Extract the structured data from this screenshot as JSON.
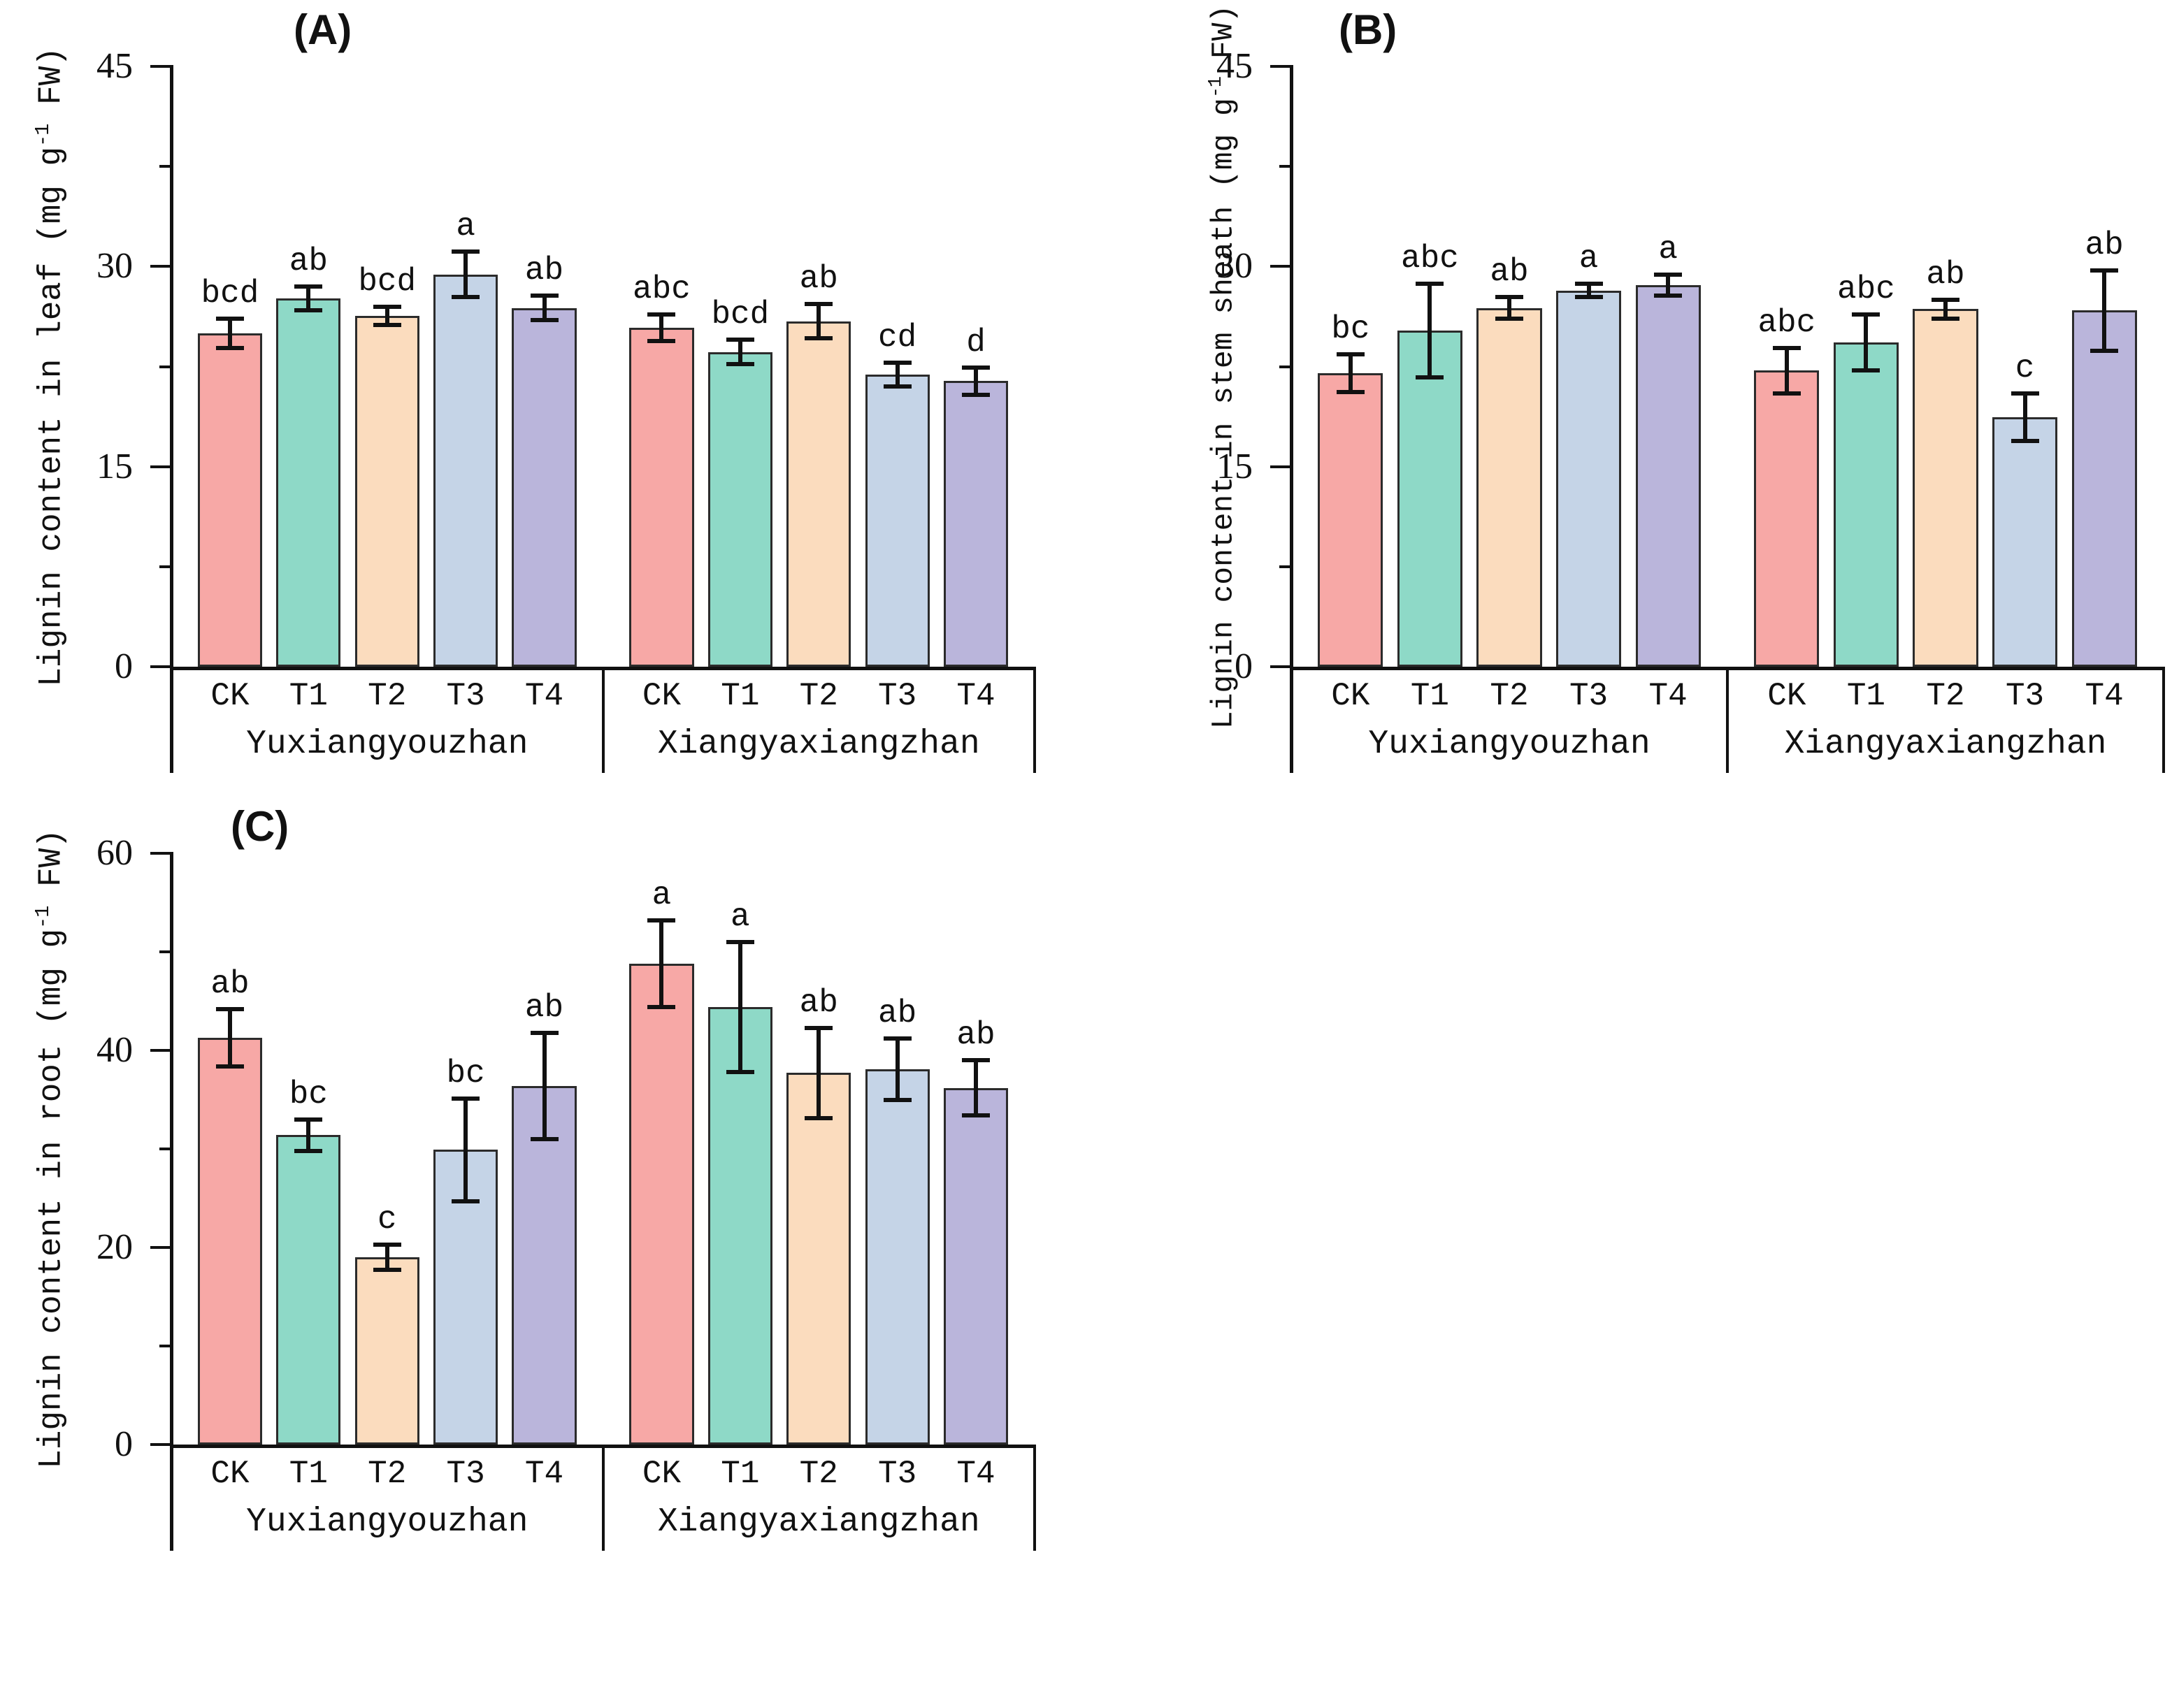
{
  "style": {
    "bar_colors": [
      "#F7A8A6",
      "#8ED9C7",
      "#FBDCBE",
      "#C5D4E7",
      "#BAB5DB"
    ],
    "bar_border_color": "#2b2b2b",
    "axis_color": "#111111",
    "background_color": "#ffffff"
  },
  "chart_data": [
    {
      "type": "bar",
      "panel_label": "(A)",
      "ylabel": {
        "pre": "Lignin content in leaf (mg g",
        "sup": "-1",
        "post": " FW)"
      },
      "ylim": [
        0,
        45
      ],
      "yticks": [
        {
          "value": 0,
          "label": "0"
        },
        {
          "value": 15,
          "label": "15"
        },
        {
          "value": 30,
          "label": "30"
        },
        {
          "value": 45,
          "label": "45"
        }
      ],
      "minor_ticks": [
        7.5,
        22.5,
        37.5
      ],
      "treatments": [
        "CK",
        "T1",
        "T2",
        "T3",
        "T4"
      ],
      "grid": false,
      "legend": "none",
      "groups": [
        {
          "label": "Yuxiangyouzhan",
          "values": [
            25.0,
            27.6,
            26.3,
            29.4,
            26.9
          ],
          "errors": [
            1.1,
            0.9,
            0.7,
            1.7,
            0.9
          ],
          "letters": [
            "bcd",
            "ab",
            "bcd",
            "a",
            "ab"
          ]
        },
        {
          "label": "Xiangyaxiangzhan",
          "values": [
            25.4,
            23.6,
            25.9,
            21.9,
            21.4
          ],
          "errors": [
            1.0,
            0.9,
            1.3,
            0.9,
            1.0
          ],
          "letters": [
            "abc",
            "bcd",
            "ab",
            "cd",
            "d"
          ]
        }
      ]
    },
    {
      "type": "bar",
      "panel_label": "(B)",
      "ylabel": {
        "pre": "Lignin content in stem sheath (mg g",
        "sup": "-1",
        "post": " FW)"
      },
      "ylim": [
        0,
        45
      ],
      "yticks": [
        {
          "value": 0,
          "label": "0"
        },
        {
          "value": 15,
          "label": "15"
        },
        {
          "value": 30,
          "label": "30"
        },
        {
          "value": 45,
          "label": "45"
        }
      ],
      "minor_ticks": [
        7.5,
        22.5,
        37.5
      ],
      "treatments": [
        "CK",
        "T1",
        "T2",
        "T3",
        "T4"
      ],
      "grid": false,
      "legend": "none",
      "groups": [
        {
          "label": "Yuxiangyouzhan",
          "values": [
            22.0,
            25.2,
            26.9,
            28.2,
            28.6
          ],
          "errors": [
            1.4,
            3.5,
            0.8,
            0.5,
            0.8
          ],
          "letters": [
            "bc",
            "abc",
            "ab",
            "a",
            "a"
          ]
        },
        {
          "label": "Xiangyaxiangzhan",
          "values": [
            22.2,
            24.3,
            26.8,
            18.7,
            26.7
          ],
          "errors": [
            1.7,
            2.1,
            0.7,
            1.8,
            3.0
          ],
          "letters": [
            "abc",
            "abc",
            "ab",
            "c",
            "ab"
          ]
        }
      ]
    },
    {
      "type": "bar",
      "panel_label": "(C)",
      "ylabel": {
        "pre": "Lignin content in root (mg g",
        "sup": "-1",
        "post": " FW)"
      },
      "ylim": [
        0,
        60
      ],
      "yticks": [
        {
          "value": 0,
          "label": "0"
        },
        {
          "value": 20,
          "label": "20"
        },
        {
          "value": 40,
          "label": "40"
        },
        {
          "value": 60,
          "label": "60"
        }
      ],
      "minor_ticks": [
        10,
        30,
        50
      ],
      "treatments": [
        "CK",
        "T1",
        "T2",
        "T3",
        "T4"
      ],
      "grid": false,
      "legend": "none",
      "groups": [
        {
          "label": "Yuxiangyouzhan",
          "values": [
            41.3,
            31.4,
            19.0,
            29.9,
            36.4
          ],
          "errors": [
            2.9,
            1.6,
            1.3,
            5.2,
            5.4
          ],
          "letters": [
            "ab",
            "bc",
            "c",
            "bc",
            "ab"
          ]
        },
        {
          "label": "Xiangyaxiangzhan",
          "values": [
            48.8,
            44.4,
            37.7,
            38.1,
            36.2
          ],
          "errors": [
            4.4,
            6.6,
            4.6,
            3.1,
            2.8
          ],
          "letters": [
            "a",
            "a",
            "ab",
            "ab",
            "ab"
          ]
        }
      ]
    }
  ]
}
